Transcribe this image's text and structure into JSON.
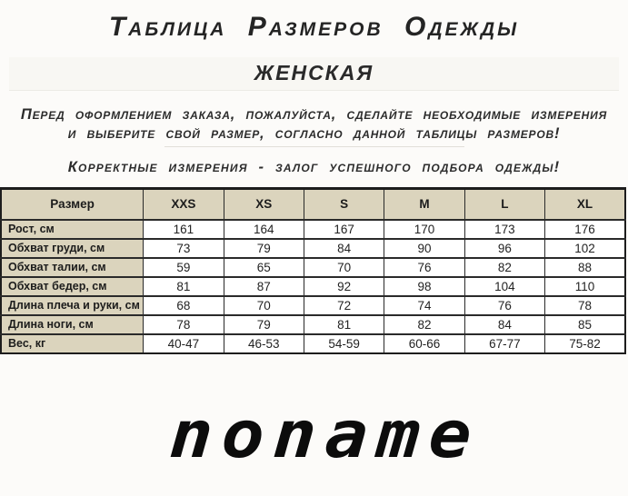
{
  "page": {
    "title": "Таблица Размеров Одежды",
    "subtitle": "ЖЕНСКАЯ",
    "intro_line1": "Перед оформлением заказа, пожалуйста, сделайте необходимые измерения",
    "intro_line2": "и выберите свой размер, согласно данной таблицы размеров!",
    "note": "Корректные измерения - залог успешного подбора одежды!",
    "brand": "noname"
  },
  "size_table": {
    "header": [
      "Размер",
      "XXS",
      "XS",
      "S",
      "M",
      "L",
      "XL"
    ],
    "rows": [
      {
        "label": "Рост, см",
        "values": [
          "161",
          "164",
          "167",
          "170",
          "173",
          "176"
        ]
      },
      {
        "label": "Обхват груди, см",
        "values": [
          "73",
          "79",
          "84",
          "90",
          "96",
          "102"
        ]
      },
      {
        "label": "Обхват талии, см",
        "values": [
          "59",
          "65",
          "70",
          "76",
          "82",
          "88"
        ]
      },
      {
        "label": "Обхват бедер, см",
        "values": [
          "81",
          "87",
          "92",
          "98",
          "104",
          "110"
        ]
      },
      {
        "label": "Длина плеча и руки, см",
        "values": [
          "68",
          "70",
          "72",
          "74",
          "76",
          "78"
        ]
      },
      {
        "label": "Длина ноги, см",
        "values": [
          "78",
          "79",
          "81",
          "82",
          "84",
          "85"
        ]
      },
      {
        "label": "Вес, кг",
        "values": [
          "40-47",
          "46-53",
          "54-59",
          "60-66",
          "67-77",
          "75-82"
        ]
      }
    ]
  },
  "colors": {
    "header_bg": "#dbd4bd",
    "table_border": "#1d1d1d",
    "text": "#1f1f1f",
    "logo": "#0c0c0c"
  }
}
